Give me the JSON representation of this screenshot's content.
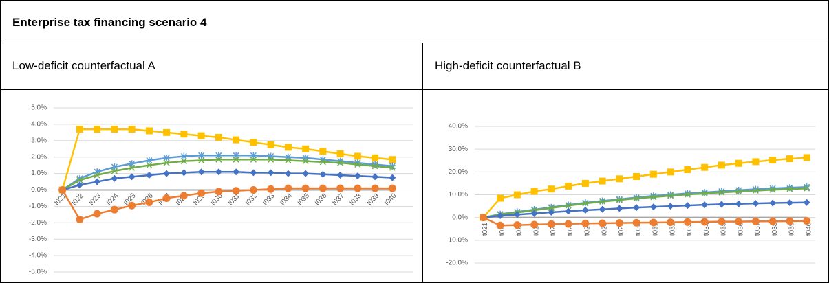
{
  "table": {
    "title": "Enterprise tax financing scenario 4",
    "columns": [
      "Low-deficit counterfactual A",
      "High-deficit counterfactual B"
    ]
  },
  "chart_data": [
    {
      "type": "line",
      "categories": [
        "t021",
        "t022",
        "t023",
        "t024",
        "t025",
        "t026",
        "t027",
        "t028",
        "t029",
        "t030",
        "t031",
        "t032",
        "t033",
        "t034",
        "t035",
        "t036",
        "t037",
        "t038",
        "t039",
        "t040"
      ],
      "ylim": [
        -5,
        5
      ],
      "yticks": [
        {
          "value": 5,
          "label": "5.0%"
        },
        {
          "value": 4,
          "label": "4.0%"
        },
        {
          "value": 3,
          "label": "3.0%"
        },
        {
          "value": 2,
          "label": "2.0%"
        },
        {
          "value": 1,
          "label": "1.0%"
        },
        {
          "value": 0,
          "label": "0.0%"
        },
        {
          "value": -1,
          "label": "-1.0%"
        },
        {
          "value": -2,
          "label": "-2.0%"
        },
        {
          "value": -3,
          "label": "-3.0%"
        },
        {
          "value": -4,
          "label": "-4.0%"
        },
        {
          "value": -5,
          "label": "-5.0%"
        }
      ],
      "grid": true,
      "series": [
        {
          "color": "#a5a5a5",
          "marker": "none",
          "values": [
            0,
            0,
            0,
            0,
            0,
            0,
            0,
            0,
            0,
            0,
            0,
            0,
            0,
            0,
            0,
            0,
            0,
            0,
            0,
            0
          ]
        },
        {
          "color": "#ffc000",
          "marker": "square",
          "values": [
            0,
            3.7,
            3.7,
            3.7,
            3.7,
            3.6,
            3.5,
            3.4,
            3.3,
            3.2,
            3.05,
            2.9,
            2.75,
            2.6,
            2.5,
            2.35,
            2.2,
            2.05,
            1.95,
            1.85
          ]
        },
        {
          "color": "#5b9bd5",
          "marker": "star",
          "values": [
            0,
            0.7,
            1.1,
            1.4,
            1.6,
            1.8,
            1.95,
            2.05,
            2.1,
            2.1,
            2.1,
            2.1,
            2.05,
            2.0,
            1.95,
            1.85,
            1.75,
            1.65,
            1.55,
            1.45
          ]
        },
        {
          "color": "#70ad47",
          "marker": "x",
          "values": [
            0,
            0.6,
            0.9,
            1.15,
            1.35,
            1.5,
            1.65,
            1.75,
            1.8,
            1.85,
            1.85,
            1.85,
            1.85,
            1.8,
            1.75,
            1.7,
            1.65,
            1.55,
            1.45,
            1.35
          ]
        },
        {
          "color": "#4472c4",
          "marker": "diamond",
          "values": [
            0,
            0.3,
            0.5,
            0.7,
            0.8,
            0.9,
            1.0,
            1.05,
            1.1,
            1.1,
            1.1,
            1.05,
            1.05,
            1.0,
            1.0,
            0.95,
            0.9,
            0.85,
            0.8,
            0.75
          ]
        },
        {
          "color": "#ed7d31",
          "marker": "circle",
          "values": [
            0,
            -1.8,
            -1.45,
            -1.2,
            -0.95,
            -0.75,
            -0.5,
            -0.35,
            -0.2,
            -0.1,
            -0.05,
            0,
            0.05,
            0.1,
            0.1,
            0.1,
            0.1,
            0.1,
            0.1,
            0.1
          ]
        }
      ]
    },
    {
      "type": "line",
      "categories": [
        "t021",
        "t022",
        "t023",
        "t024",
        "t025",
        "t026",
        "t027",
        "t028",
        "t029",
        "t030",
        "t031",
        "t032",
        "t033",
        "t034",
        "t035",
        "t036",
        "t037",
        "t038",
        "t039",
        "t040"
      ],
      "ylim": [
        -20,
        40
      ],
      "yticks": [
        {
          "value": 40,
          "label": "40.0%"
        },
        {
          "value": 30,
          "label": "30.0%"
        },
        {
          "value": 20,
          "label": "20.0%"
        },
        {
          "value": 10,
          "label": "10.0%"
        },
        {
          "value": 0,
          "label": "0.0%"
        },
        {
          "value": -10,
          "label": "-10.0%"
        },
        {
          "value": -20,
          "label": "-20.0%"
        }
      ],
      "grid": true,
      "series": [
        {
          "color": "#a5a5a5",
          "marker": "none",
          "values": [
            0,
            0,
            0,
            0,
            0,
            0,
            0,
            0,
            0,
            0,
            0,
            0,
            0,
            0,
            0,
            0,
            0,
            0,
            0,
            0
          ]
        },
        {
          "color": "#ffc000",
          "marker": "square",
          "values": [
            0,
            8.5,
            10,
            11.5,
            12.5,
            13.8,
            15,
            16,
            17,
            18,
            19,
            20,
            21,
            22,
            23,
            23.8,
            24.5,
            25.2,
            25.8,
            26.3
          ]
        },
        {
          "color": "#5b9bd5",
          "marker": "star",
          "values": [
            0,
            1.5,
            2.5,
            3.5,
            4.5,
            5.5,
            6.5,
            7.3,
            8,
            8.8,
            9.5,
            10,
            10.6,
            11,
            11.5,
            12,
            12.4,
            12.8,
            13.1,
            13.4
          ]
        },
        {
          "color": "#70ad47",
          "marker": "x",
          "values": [
            0,
            1.3,
            2.2,
            3.2,
            4.2,
            5.2,
            6.2,
            7,
            7.7,
            8.4,
            9,
            9.6,
            10.1,
            10.6,
            11,
            11.4,
            11.8,
            12.2,
            12.5,
            12.8
          ]
        },
        {
          "color": "#4472c4",
          "marker": "diamond",
          "values": [
            0,
            0.8,
            1.3,
            1.8,
            2.3,
            2.8,
            3.2,
            3.6,
            4,
            4.4,
            4.7,
            5,
            5.3,
            5.6,
            5.8,
            6,
            6.2,
            6.4,
            6.5,
            6.6
          ]
        },
        {
          "color": "#ed7d31",
          "marker": "circle",
          "values": [
            0,
            -3.5,
            -3.3,
            -3.1,
            -2.9,
            -2.8,
            -2.6,
            -2.5,
            -2.4,
            -2.3,
            -2.2,
            -2.1,
            -2,
            -1.9,
            -1.8,
            -1.8,
            -1.7,
            -1.7,
            -1.6,
            -1.5
          ]
        }
      ]
    }
  ]
}
